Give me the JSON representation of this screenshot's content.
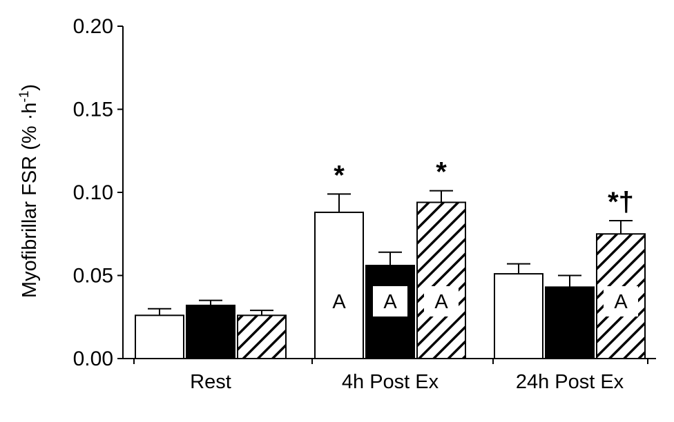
{
  "chart_data": {
    "type": "bar",
    "categories": [
      "Rest",
      "4h Post Ex",
      "24h Post Ex"
    ],
    "ylabel": {
      "main": "Myofibrillar FSR (% ·h",
      "superscript": "-1",
      "close": ")"
    },
    "ylim": [
      0,
      0.2
    ],
    "yticks": [
      "0.00",
      "0.05",
      "0.10",
      "0.15",
      "0.20"
    ],
    "grid": false,
    "series": [
      {
        "fill": "white",
        "values": [
          0.026,
          0.088,
          0.051
        ],
        "errors": [
          0.004,
          0.011,
          0.006
        ]
      },
      {
        "fill": "black",
        "values": [
          0.032,
          0.056,
          0.043
        ],
        "errors": [
          0.003,
          0.008,
          0.007
        ]
      },
      {
        "fill": "hatched",
        "values": [
          0.026,
          0.094,
          0.075
        ],
        "errors": [
          0.003,
          0.007,
          0.008
        ]
      }
    ],
    "annotations": [
      {
        "category": 1,
        "series": 0,
        "text": "*"
      },
      {
        "category": 1,
        "series": 2,
        "text": "*"
      },
      {
        "category": 2,
        "series": 2,
        "text": "*†"
      }
    ],
    "bar_labels": [
      {
        "category": 1,
        "series": 0,
        "text": "A"
      },
      {
        "category": 1,
        "series": 1,
        "text": "A"
      },
      {
        "category": 1,
        "series": 2,
        "text": "A"
      },
      {
        "category": 2,
        "series": 2,
        "text": "A"
      }
    ]
  }
}
